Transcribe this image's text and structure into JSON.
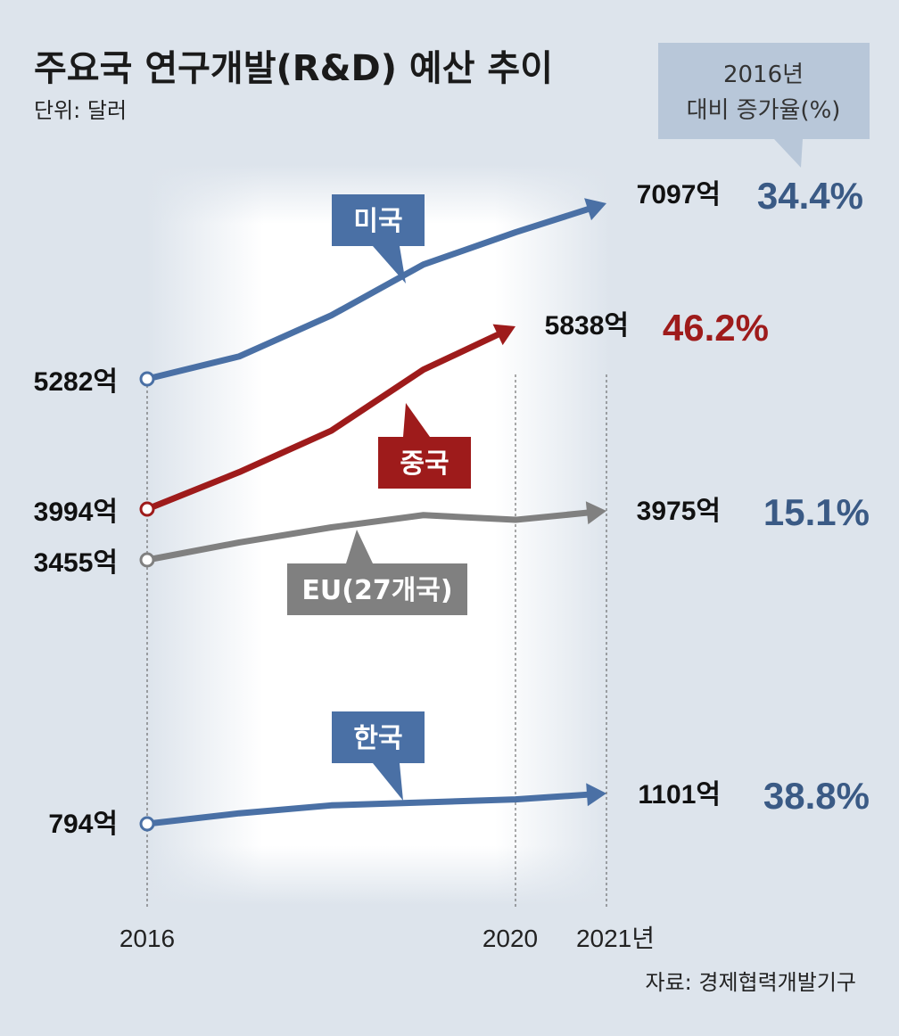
{
  "title": "주요국 연구개발(R&D) 예산 추이",
  "unit": "단위: 달러",
  "growth_box": {
    "line1": "2016년",
    "line2": "대비 증가율(%)"
  },
  "source": "자료: 경제협력개발기구",
  "colors": {
    "usa": "#4a70a5",
    "china": "#9e1b1b",
    "eu": "#808080",
    "korea": "#4a70a5",
    "pct_blue": "#3a5a85",
    "pct_red": "#9e1b1b"
  },
  "chart_data": {
    "type": "line",
    "title": "주요국 연구개발(R&D) 예산 추이",
    "unit": "단위: 달러",
    "x_ticks": [
      "2016",
      "2020",
      "2021년"
    ],
    "x": [
      2016,
      2017,
      2018,
      2019,
      2020,
      2021
    ],
    "series": [
      {
        "key": "usa",
        "name": "미국",
        "values": [
          5282,
          5520,
          5950,
          6470,
          6800,
          7097
        ],
        "start_label": "5282억",
        "end_label": "7097억",
        "growth": "34.4%"
      },
      {
        "key": "china",
        "name": "중국",
        "values": [
          3994,
          4360,
          4770,
          5380,
          5838,
          null
        ],
        "start_label": "3994억",
        "end_label": "5838억",
        "growth": "46.2%"
      },
      {
        "key": "eu",
        "name": "EU(27개국)",
        "values": [
          3455,
          3640,
          3800,
          3930,
          3880,
          3975
        ],
        "start_label": "3455억",
        "end_label": "3975억",
        "growth": "15.1%"
      },
      {
        "key": "korea",
        "name": "한국",
        "values": [
          794,
          900,
          980,
          1010,
          1040,
          1101
        ],
        "start_label": "794억",
        "end_label": "1101억",
        "growth": "38.8%"
      }
    ]
  }
}
